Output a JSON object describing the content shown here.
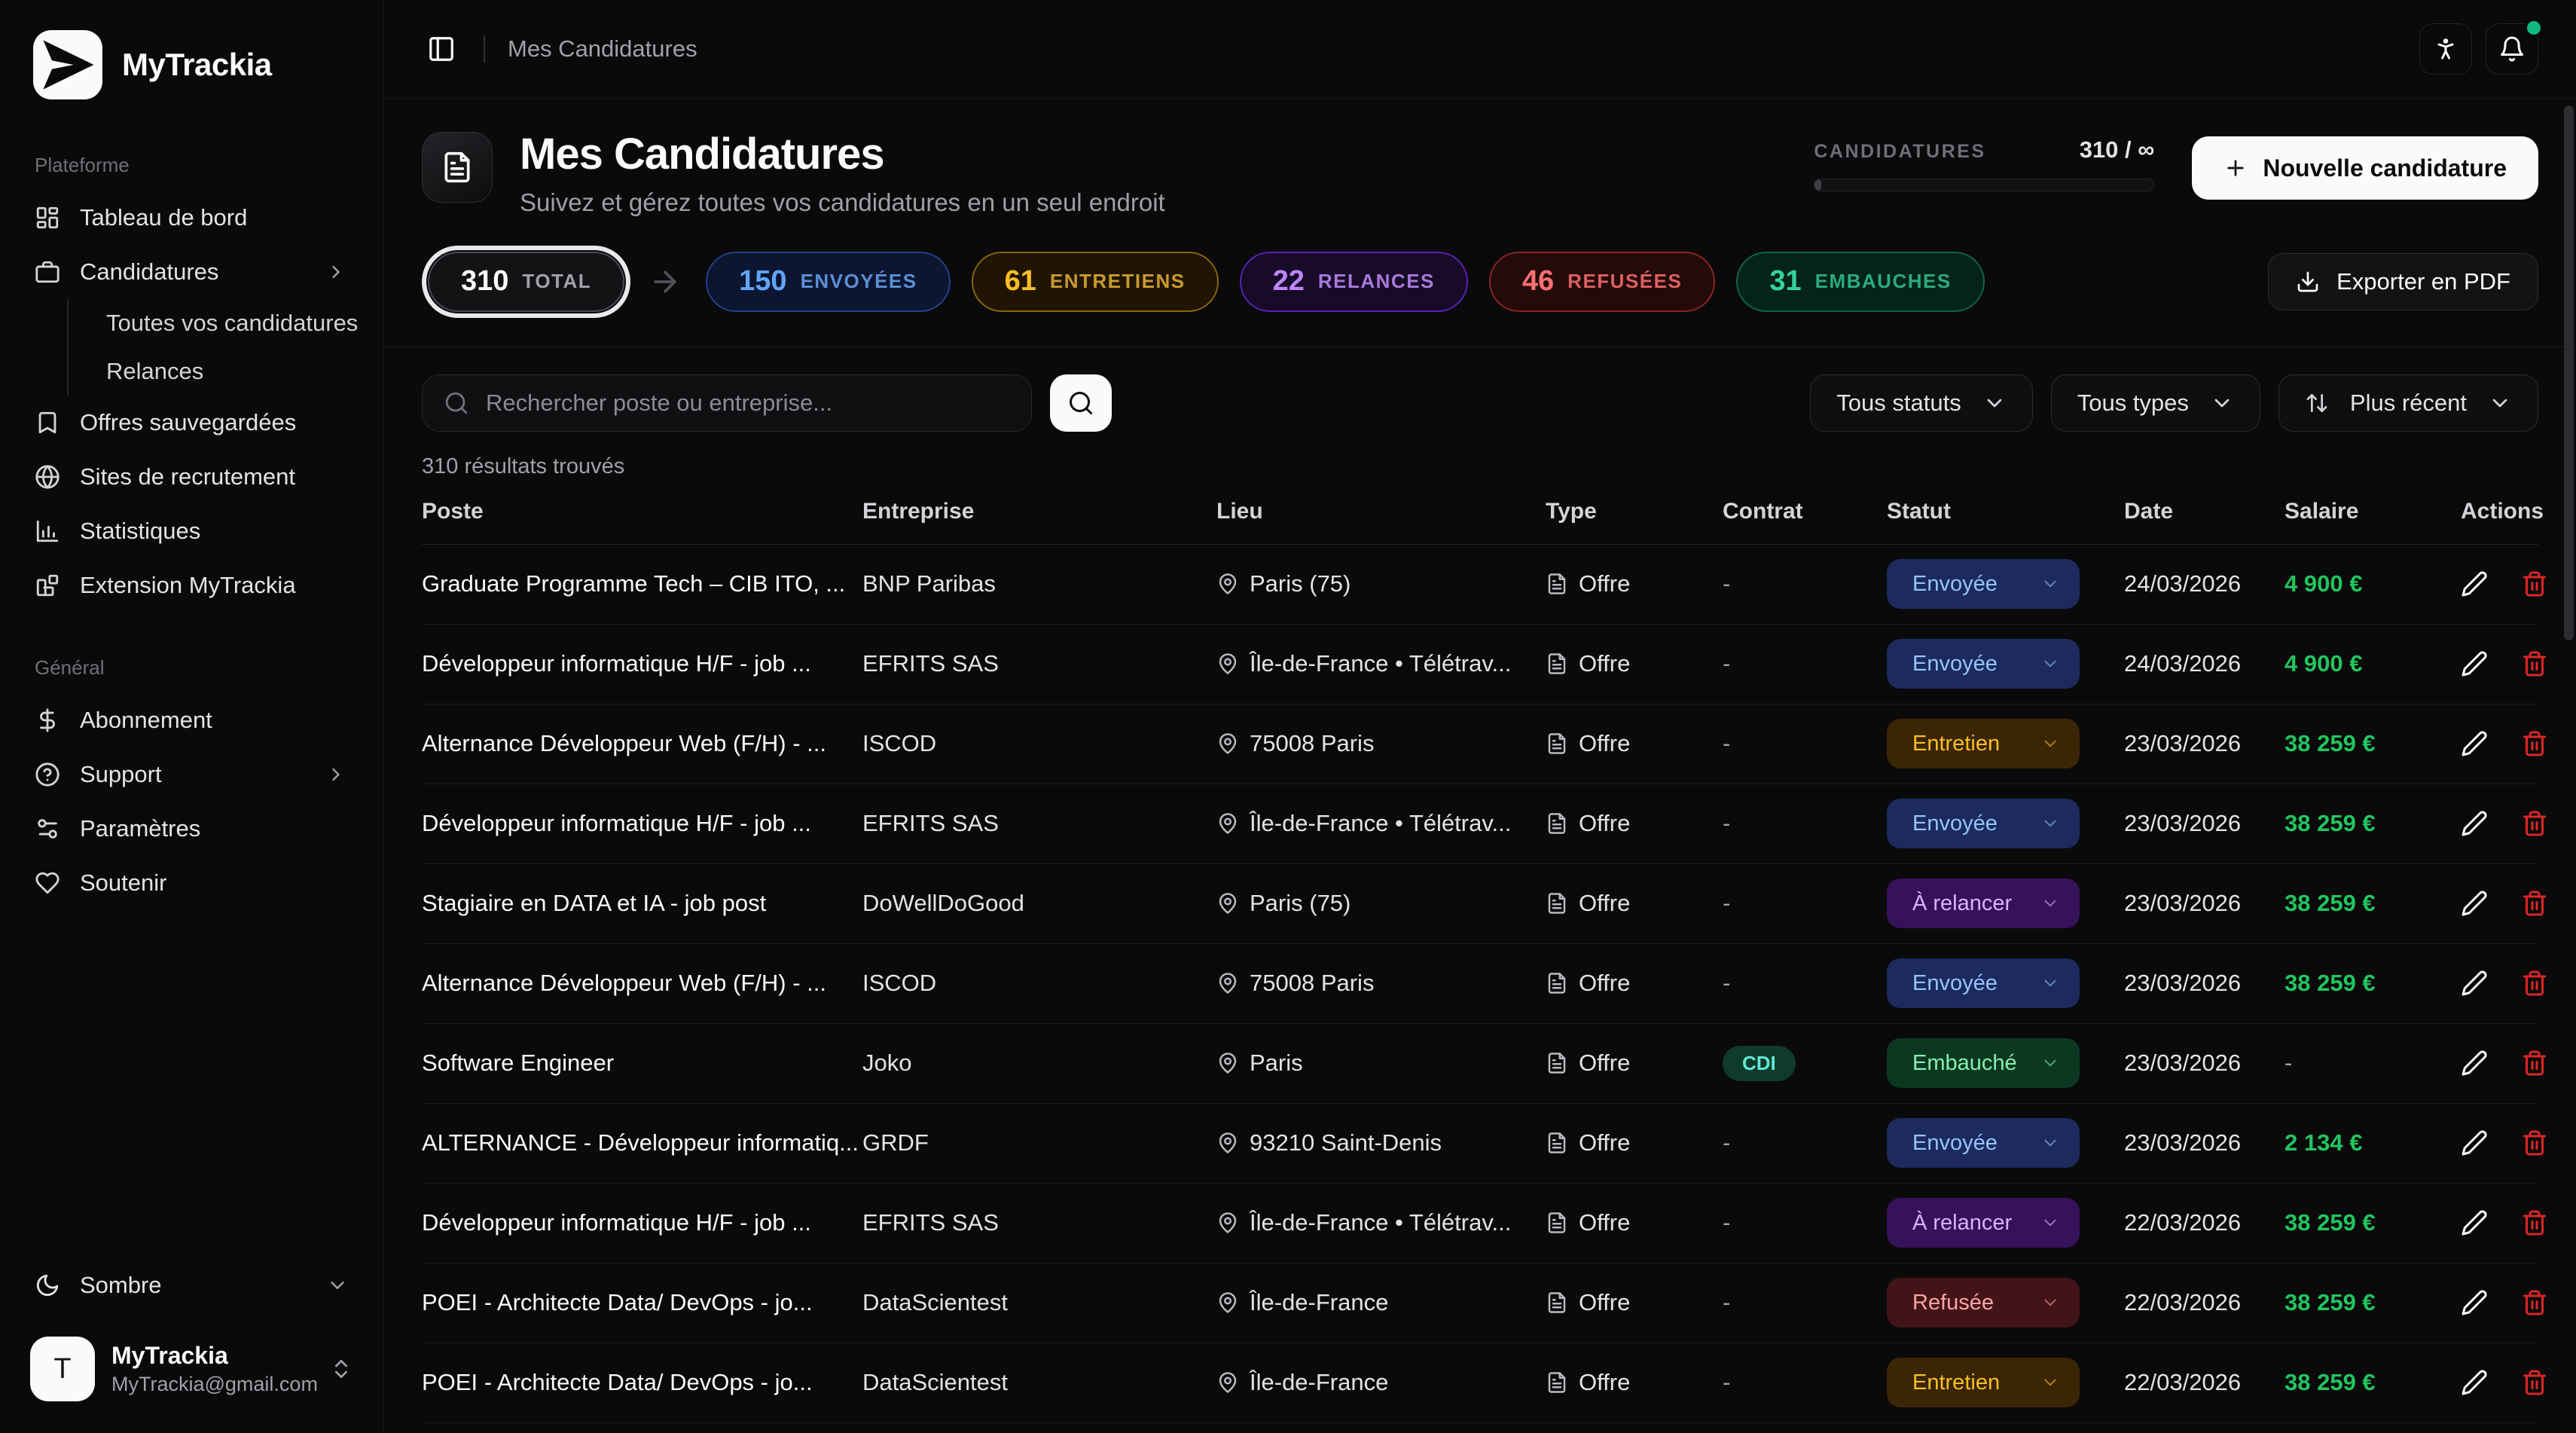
{
  "brand": {
    "name": "MyTrackia"
  },
  "sidebar": {
    "sections": [
      {
        "label": "Plateforme",
        "items": [
          {
            "icon": "dashboard",
            "label": "Tableau de bord"
          },
          {
            "icon": "briefcase",
            "label": "Candidatures",
            "chevron": true,
            "children": [
              "Toutes vos candidatures",
              "Relances"
            ]
          },
          {
            "icon": "bookmark",
            "label": "Offres sauvegardées"
          },
          {
            "icon": "globe",
            "label": "Sites de recrutement"
          },
          {
            "icon": "chart",
            "label": "Statistiques"
          },
          {
            "icon": "puzzle",
            "label": "Extension MyTrackia"
          }
        ]
      },
      {
        "label": "Général",
        "items": [
          {
            "icon": "dollar",
            "label": "Abonnement"
          },
          {
            "icon": "help",
            "label": "Support",
            "chevron": true
          },
          {
            "icon": "settings2",
            "label": "Paramètres"
          },
          {
            "icon": "heart",
            "label": "Soutenir"
          }
        ]
      }
    ],
    "theme_toggle": {
      "label": "Sombre"
    },
    "user": {
      "initial": "T",
      "name": "MyTrackia",
      "email": "MyTrackia@gmail.com"
    }
  },
  "topbar": {
    "breadcrumb": "Mes Candidatures"
  },
  "header": {
    "title": "Mes Candidatures",
    "subtitle": "Suivez et gérez toutes vos candidatures en un seul endroit",
    "quota_label": "CANDIDATURES",
    "quota_value": "310 / ∞",
    "new_button": "Nouvelle candidature"
  },
  "stats": {
    "total": {
      "value": "310",
      "label": "TOTAL"
    },
    "pills": [
      {
        "value": "150",
        "label": "ENVOYÉES",
        "color": "blue"
      },
      {
        "value": "61",
        "label": "ENTRETIENS",
        "color": "amber"
      },
      {
        "value": "22",
        "label": "RELANCES",
        "color": "purple"
      },
      {
        "value": "46",
        "label": "REFUSÉES",
        "color": "red"
      },
      {
        "value": "31",
        "label": "EMBAUCHES",
        "color": "green"
      }
    ],
    "export_button": "Exporter en PDF"
  },
  "filters": {
    "search_placeholder": "Rechercher poste ou entreprise...",
    "status_filter": "Tous statuts",
    "type_filter": "Tous types",
    "sort_filter": "Plus récent",
    "results_text": "310 résultats trouvés"
  },
  "table": {
    "columns": [
      "Poste",
      "Entreprise",
      "Lieu",
      "Type",
      "Contrat",
      "Statut",
      "Date",
      "Salaire",
      "Actions"
    ],
    "rows": [
      {
        "poste": "Graduate Programme Tech – CIB ITO, ...",
        "entreprise": "BNP Paribas",
        "lieu": "Paris (75)",
        "type": "Offre",
        "contrat": "-",
        "statut": "Envoyée",
        "statut_color": "blue",
        "date": "24/03/2026",
        "salaire": "4 900 €"
      },
      {
        "poste": "Développeur informatique H/F - job ...",
        "entreprise": "EFRITS SAS",
        "lieu": "Île-de-France • Télétrav...",
        "type": "Offre",
        "contrat": "-",
        "statut": "Envoyée",
        "statut_color": "blue",
        "date": "24/03/2026",
        "salaire": "4 900 €"
      },
      {
        "poste": "Alternance Développeur Web (F/H) - ...",
        "entreprise": "ISCOD",
        "lieu": "75008 Paris",
        "type": "Offre",
        "contrat": "-",
        "statut": "Entretien",
        "statut_color": "amber",
        "date": "23/03/2026",
        "salaire": "38 259 €"
      },
      {
        "poste": "Développeur informatique H/F - job ...",
        "entreprise": "EFRITS SAS",
        "lieu": "Île-de-France • Télétrav...",
        "type": "Offre",
        "contrat": "-",
        "statut": "Envoyée",
        "statut_color": "blue",
        "date": "23/03/2026",
        "salaire": "38 259 €"
      },
      {
        "poste": "Stagiaire en DATA et IA - job post",
        "entreprise": "DoWellDoGood",
        "lieu": "Paris (75)",
        "type": "Offre",
        "contrat": "-",
        "statut": "À relancer",
        "statut_color": "purple",
        "date": "23/03/2026",
        "salaire": "38 259 €"
      },
      {
        "poste": "Alternance Développeur Web (F/H) - ...",
        "entreprise": "ISCOD",
        "lieu": "75008 Paris",
        "type": "Offre",
        "contrat": "-",
        "statut": "Envoyée",
        "statut_color": "blue",
        "date": "23/03/2026",
        "salaire": "38 259 €"
      },
      {
        "poste": "Software Engineer",
        "entreprise": "Joko",
        "lieu": "Paris",
        "type": "Offre",
        "contrat": "CDI",
        "statut": "Embauché",
        "statut_color": "green",
        "date": "23/03/2026",
        "salaire": "-"
      },
      {
        "poste": "ALTERNANCE - Développeur informatiq...",
        "entreprise": "GRDF",
        "lieu": "93210 Saint-Denis",
        "type": "Offre",
        "contrat": "-",
        "statut": "Envoyée",
        "statut_color": "blue",
        "date": "23/03/2026",
        "salaire": "2 134 €"
      },
      {
        "poste": "Développeur informatique H/F - job ...",
        "entreprise": "EFRITS SAS",
        "lieu": "Île-de-France • Télétrav...",
        "type": "Offre",
        "contrat": "-",
        "statut": "À relancer",
        "statut_color": "purple",
        "date": "22/03/2026",
        "salaire": "38 259 €"
      },
      {
        "poste": "POEI - Architecte Data/ DevOps - jo...",
        "entreprise": "DataScientest",
        "lieu": "Île-de-France",
        "type": "Offre",
        "contrat": "-",
        "statut": "Refusée",
        "statut_color": "red",
        "date": "22/03/2026",
        "salaire": "38 259 €"
      },
      {
        "poste": "POEI - Architecte Data/ DevOps - jo...",
        "entreprise": "DataScientest",
        "lieu": "Île-de-France",
        "type": "Offre",
        "contrat": "-",
        "statut": "Entretien",
        "statut_color": "amber",
        "date": "22/03/2026",
        "salaire": "38 259 €"
      }
    ]
  },
  "colors": {
    "accent_green": "#22c55e",
    "danger_red": "#dc2626",
    "notification_green": "#10b981"
  }
}
